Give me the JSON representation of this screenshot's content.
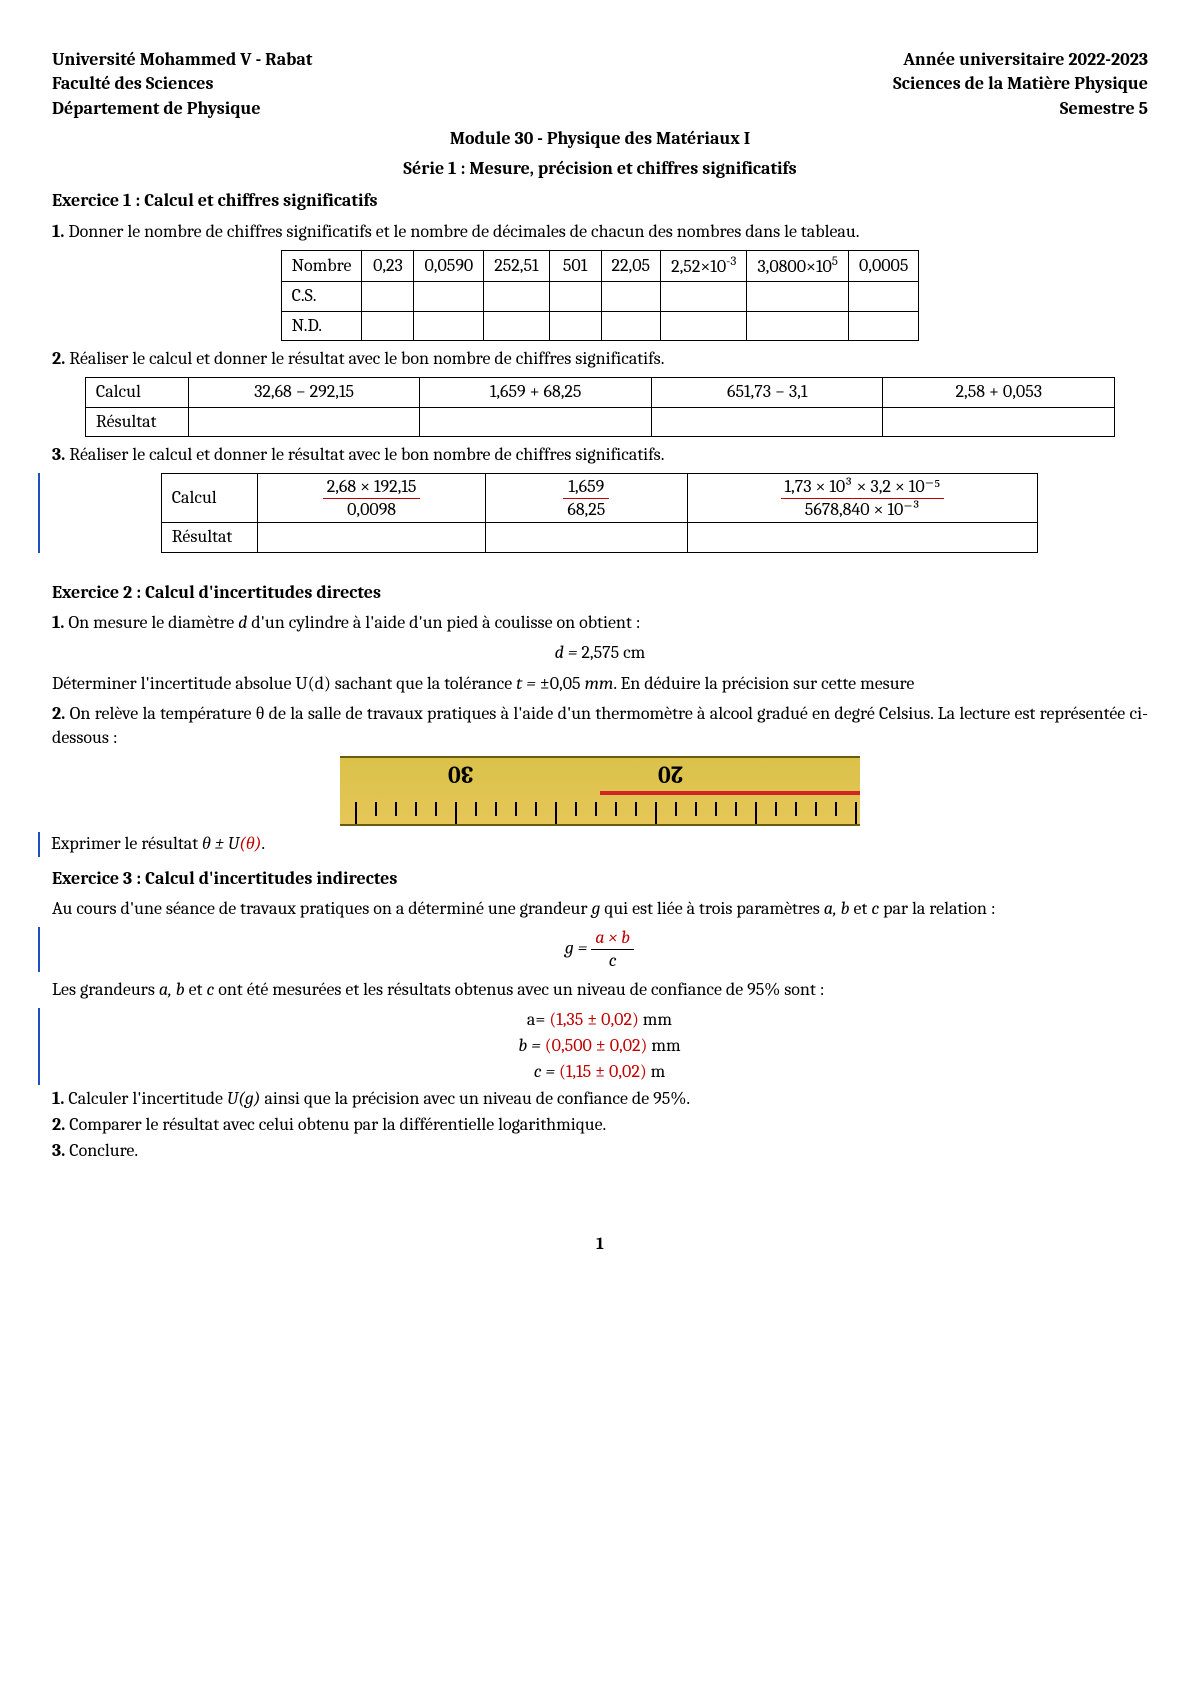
{
  "header": {
    "left1": "Université Mohammed V - Rabat",
    "right1": "Année universitaire 2022-2023",
    "left2": "Faculté des Sciences",
    "right2": "Sciences de la Matière Physique",
    "left3": "Département de Physique",
    "right3": "Semestre 5",
    "module": "Module 30 - Physique des Matériaux I",
    "serie": "Série 1 : Mesure, précision et chiffres significatifs"
  },
  "ex1": {
    "title": "Exercice 1 : Calcul et chiffres significatifs",
    "q1_num": "1.",
    "q1_text": " Donner le nombre de chiffres significatifs et le nombre de décimales de chacun des nombres dans le tableau.",
    "t1": {
      "h": "Nombre",
      "cells": [
        "0,23",
        "0,0590",
        "252,51",
        "501",
        "22,05",
        "2,52×10",
        "3,0800×10",
        "0,0005"
      ],
      "exp1": "-3",
      "exp2": "5",
      "r1": "C.S.",
      "r2": "N.D."
    },
    "q2_num": "2.",
    "q2_text": " Réaliser le calcul et donner le résultat avec le bon nombre de chiffres significatifs.",
    "t2": {
      "h": "Calcul",
      "cells": [
        "32,68 − 292,15",
        "1,659 + 68,25",
        "651,73 − 3,1",
        "2,58 + 0,053"
      ],
      "r": "Résultat"
    },
    "q3_num": "3.",
    "q3_text": " Réaliser le calcul et donner le résultat avec le bon nombre de chiffres significatifs.",
    "t3": {
      "h": "Calcul",
      "c1n": "2,68 × 192,15",
      "c1d": "0,0098",
      "c2n": "1,659",
      "c2d": "68,25",
      "c3n": "1,73 × 10³ × 3,2 × 10⁻⁵",
      "c3d": "5678,840 × 10⁻³",
      "r": "Résultat"
    }
  },
  "ex2": {
    "title": "Exercice 2 : Calcul d'incertitudes directes",
    "q1_num": "1.",
    "q1_a": " On mesure le diamètre ",
    "q1_var": "d",
    "q1_b": " d'un cylindre à l'aide d'un pied à coulisse on obtient :",
    "eq1_lhs": "d = ",
    "eq1_rhs": "2,575 cm",
    "q1_c": "Déterminer l'incertitude absolue U(d) sachant que la tolérance ",
    "tol_lhs": "t = ",
    "tol_rhs": "±0,05 ",
    "tol_unit": "mm",
    "q1_d": ". En déduire la précision sur cette mesure",
    "q2_num": "2.",
    "q2_text": " On relève la température θ de la salle de travaux pratiques à l'aide d'un thermomètre à alcool gradué en degré Celsius. La lecture est représentée ci-dessous :",
    "thermo": {
      "label1": "30",
      "label2": "20"
    },
    "q2_res_a": "Exprimer le résultat ",
    "q2_res_expr": "θ ± U(θ)",
    "q2_res_b": "."
  },
  "ex3": {
    "title": "Exercice 3 : Calcul d'incertitudes indirectes",
    "intro_a": "Au cours d'une séance de travaux pratiques on a déterminé une grandeur ",
    "intro_g": "g",
    "intro_b": " qui est liée à trois paramètres ",
    "intro_vars": "a, b",
    "intro_c": " et ",
    "intro_cvar": "c",
    "intro_d": " par la relation :",
    "eq_g_lhs": "g = ",
    "eq_g_num": "a × b",
    "eq_g_den": "c",
    "mes_a": "Les grandeurs ",
    "mes_vars": "a, b",
    "mes_b": " et ",
    "mes_c": "c",
    "mes_d": " ont été mesurées et les résultats obtenus avec un niveau de confiance de 95% sont :",
    "val_a_lhs": "a= ",
    "val_a": "(1,35 ± 0,02)",
    "val_a_unit": " mm",
    "val_b_lhs": "b = ",
    "val_b": "(0,500 ± 0,02)",
    "val_b_unit": " mm",
    "val_c_lhs": "c = ",
    "val_c": "(1,15 ± 0,02)",
    "val_c_unit": " m",
    "q1_num": "1.",
    "q1": " Calculer l'incertitude ",
    "q1_expr": "U(g)",
    "q1_b": " ainsi que la précision avec un niveau de confiance de 95%.",
    "q2_num": "2.",
    "q2": " Comparer le résultat avec celui obtenu par la différentielle logarithmique.",
    "q3_num": "3.",
    "q3": " Conclure."
  },
  "page_number": "1"
}
